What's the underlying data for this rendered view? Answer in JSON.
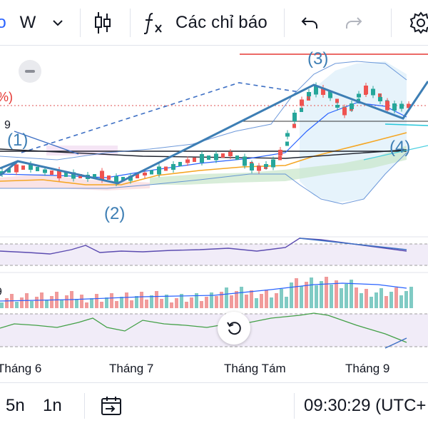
{
  "toolbar": {
    "interval_label": "W",
    "indicators_label": "Các chỉ báo",
    "icons": [
      "chevron-down-icon",
      "candlestick-icon",
      "fx-icon",
      "undo-icon",
      "redo-icon",
      "gear-icon"
    ]
  },
  "chart": {
    "wave_labels": [
      "(1)",
      "(2)",
      "(3)",
      "(4)"
    ],
    "axis_partial_labels": [
      "%)",
      "9",
      "9"
    ],
    "x_axis_labels": [
      "Tháng 6",
      "Tháng 7",
      "Tháng Tám",
      "Tháng 9"
    ],
    "colors": {
      "up": "#26a69a",
      "down": "#ef5350",
      "wave": "#3d7eb4",
      "bollinger": "#4a7fd1",
      "rsi": "#5b4bb0",
      "macd": "#43a047",
      "ema_orange": "#f5a623",
      "trendline": "#1e222d"
    }
  },
  "bottombar": {
    "ranges": [
      "5n",
      "1n"
    ],
    "time": "09:30:29 (UTC+",
    "icons": [
      "goto-date-icon"
    ]
  }
}
